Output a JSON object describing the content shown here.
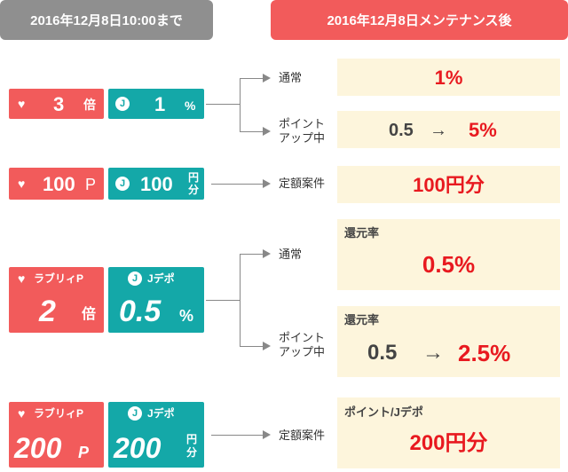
{
  "header": {
    "left": "2016年12月8日10:00まで",
    "right": "2016年12月8日メンテナンス後"
  },
  "row1": {
    "heart_value": "3",
    "heart_unit": "倍",
    "j_icon": "J",
    "j_value": "1",
    "j_unit": "%",
    "branch_normal": "通常",
    "branch_pointup_1": "ポイント",
    "branch_pointup_2": "アップ中",
    "result_normal": "1%",
    "result_pointup_from": "0.5",
    "result_pointup_arrow": "→",
    "result_pointup_to": "5%"
  },
  "row2": {
    "heart_value": "100",
    "heart_unit": "P",
    "j_icon": "J",
    "j_value": "100",
    "j_unit_1": "円",
    "j_unit_2": "分",
    "branch": "定額案件",
    "result": "100円分"
  },
  "row3": {
    "heart_label": "ラブリィP",
    "heart_value": "2",
    "heart_unit": "倍",
    "j_icon": "J",
    "j_label": "Jデポ",
    "j_value": "0.5",
    "j_unit": "%",
    "branch_normal": "通常",
    "branch_pointup_1": "ポイント",
    "branch_pointup_2": "アップ中",
    "result_normal_caption": "還元率",
    "result_normal": "0.5%",
    "result_pointup_caption": "還元率",
    "result_pointup_from": "0.5",
    "result_pointup_arrow": "→",
    "result_pointup_to": "2.5%"
  },
  "row4": {
    "heart_label": "ラブリィP",
    "heart_value": "200",
    "heart_unit": "P",
    "j_icon": "J",
    "j_label": "Jデポ",
    "j_value": "200",
    "j_unit_1": "円",
    "j_unit_2": "分",
    "branch": "定額案件",
    "result_caption": "ポイント/Jデポ",
    "result": "200円分"
  },
  "colors": {
    "red_box": "#f25b5b",
    "teal_box": "#14a8a8",
    "gray_header": "#8f8f8f",
    "result_bg": "#fdf5dc",
    "highlight_red": "#e8191f"
  },
  "icons": [
    "heart-icon",
    "j-circle-icon",
    "arrow-right-icon"
  ]
}
